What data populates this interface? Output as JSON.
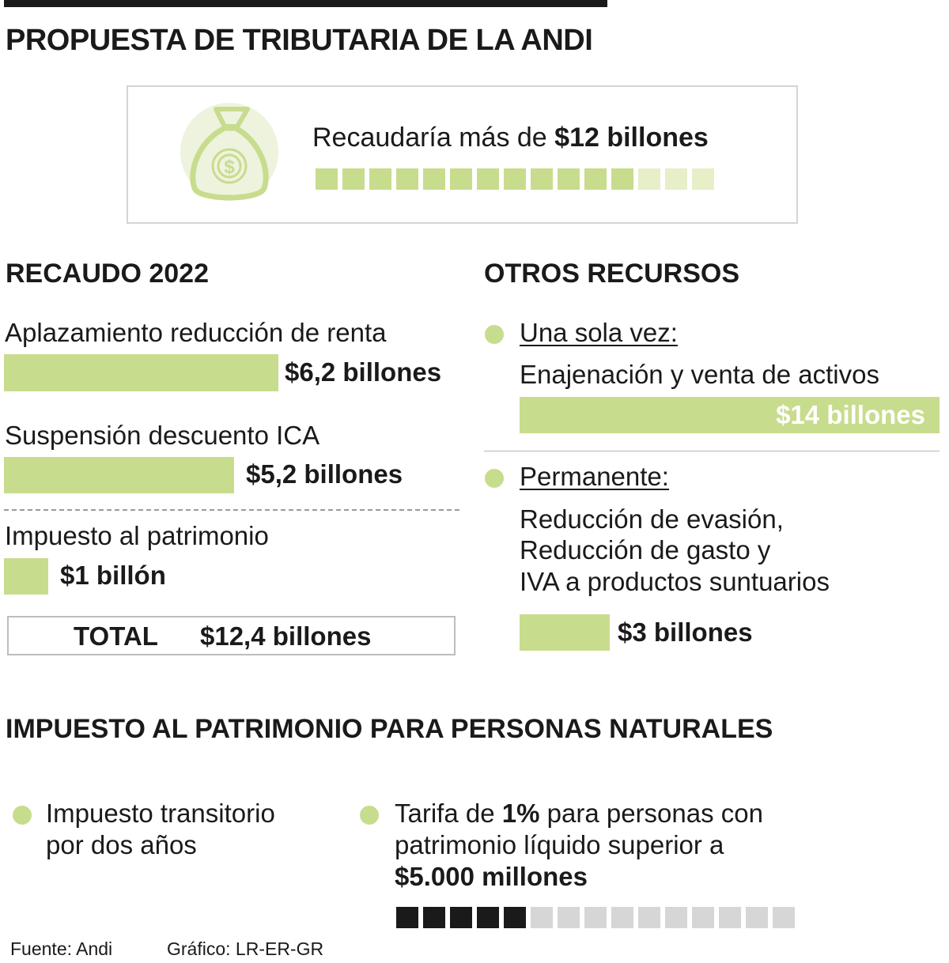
{
  "title": "PROPUESTA DE TRIBUTARIA DE LA ANDI",
  "colors": {
    "accent": "#c8dc8d",
    "accent_light": "#e6efc7",
    "dark": "#1a1a1a",
    "gray": "#d6d6d6"
  },
  "hero": {
    "icon": "money-bag-icon",
    "text_prefix": "Recaudaría más de ",
    "text_bold": "$12 billones",
    "segments_total": 15,
    "segments_filled": 12
  },
  "recaudo": {
    "heading": "RECAUDO 2022",
    "items": [
      {
        "label": "Aplazamiento reducción de renta",
        "value": 6.2,
        "value_label": "$6,2 billones"
      },
      {
        "label": "Suspensión descuento ICA",
        "value": 5.2,
        "value_label": "$5,2 billones"
      },
      {
        "label": "Impuesto al patrimonio",
        "value": 1,
        "value_label": "$1 billón"
      }
    ],
    "total_label": "TOTAL",
    "total_value": "$12,4 billones"
  },
  "otros": {
    "heading": "OTROS RECURSOS",
    "una_sola_vez": {
      "label": "Una sola vez:",
      "desc": "Enajenación y venta de activos",
      "value": 14,
      "value_label": "$14 billones"
    },
    "permanente": {
      "label": "Permanente:",
      "desc_lines": [
        "Reducción de evasión,",
        "Reducción de gasto y",
        "IVA a productos suntuarios"
      ],
      "value": 3,
      "value_label": "$3 billones"
    }
  },
  "patrimonio": {
    "heading": "IMPUESTO AL PATRIMONIO PARA PERSONAS NATURALES",
    "bullet1": [
      "Impuesto transitorio",
      "por dos años"
    ],
    "bullet2": {
      "pre": "Tarifa de ",
      "bold": "1%",
      "post": " para personas con",
      "line2": "patrimonio líquido superior a",
      "line3": "$5.000 millones"
    },
    "segments_total": 15,
    "segments_filled": 5
  },
  "footer": {
    "source": "Fuente: Andi",
    "credit": "Gráfico: LR-ER-GR"
  },
  "chart_data": [
    {
      "type": "bar",
      "title": "RECAUDO 2022",
      "categories": [
        "Aplazamiento reducción de renta",
        "Suspensión descuento ICA",
        "Impuesto al patrimonio"
      ],
      "values": [
        6.2,
        5.2,
        1
      ],
      "unit": "billones de pesos",
      "total": 12.4
    },
    {
      "type": "bar",
      "title": "OTROS RECURSOS",
      "categories": [
        "Una sola vez: Enajenación y venta de activos",
        "Permanente: Reducción de evasión, Reducción de gasto y IVA a productos suntuarios"
      ],
      "values": [
        14,
        3
      ],
      "unit": "billones de pesos"
    }
  ]
}
